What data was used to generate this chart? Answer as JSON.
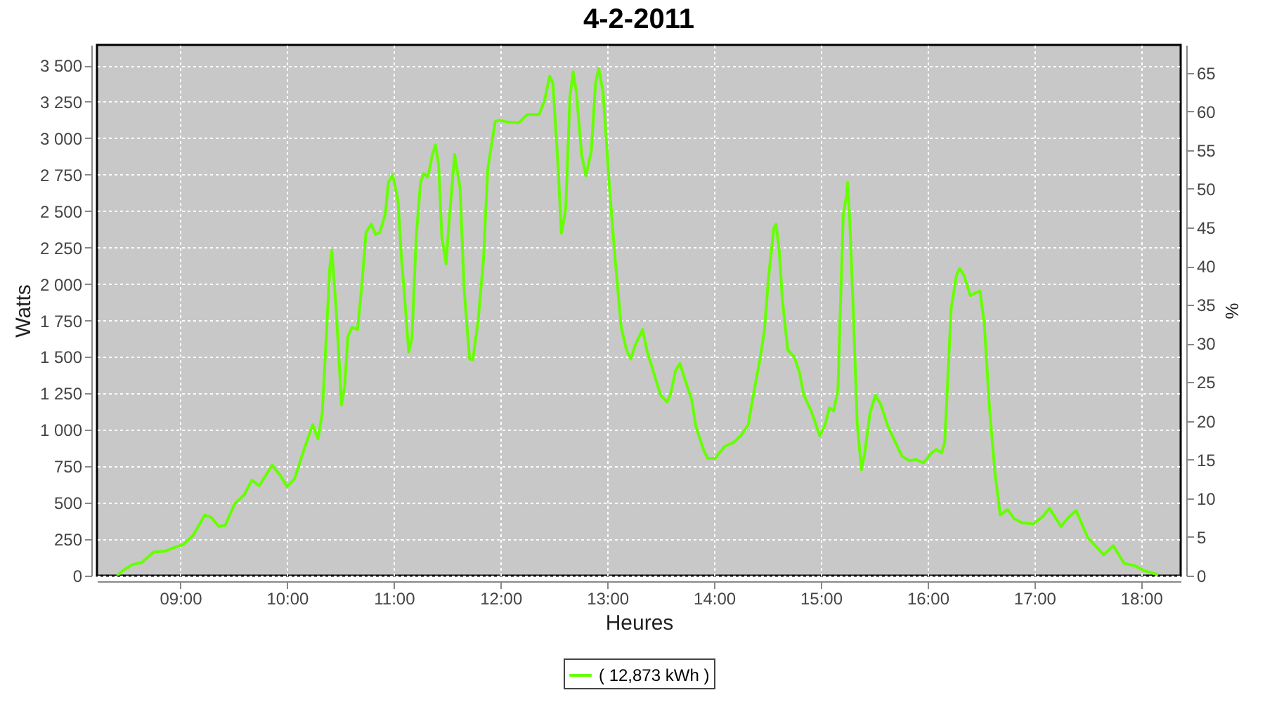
{
  "chart_data": {
    "type": "line",
    "title": "4-2-2011",
    "xlabel": "Heures",
    "ylabel": "Watts",
    "y2label": "%",
    "xlim": [
      8.22,
      18.37
    ],
    "ylim": [
      0,
      3640
    ],
    "y2lim": [
      0,
      68.6
    ],
    "xticks": [
      {
        "value": 9,
        "label": "09:00"
      },
      {
        "value": 10,
        "label": "10:00"
      },
      {
        "value": 11,
        "label": "11:00"
      },
      {
        "value": 12,
        "label": "12:00"
      },
      {
        "value": 13,
        "label": "13:00"
      },
      {
        "value": 14,
        "label": "14:00"
      },
      {
        "value": 15,
        "label": "15:00"
      },
      {
        "value": 16,
        "label": "16:00"
      },
      {
        "value": 17,
        "label": "17:00"
      },
      {
        "value": 18,
        "label": "18:00"
      }
    ],
    "yticks": [
      0,
      250,
      500,
      750,
      {
        "value": 1000,
        "label": "1 000"
      },
      {
        "value": 1250,
        "label": "1 250"
      },
      {
        "value": 1500,
        "label": "1 500"
      },
      {
        "value": 1750,
        "label": "1 750"
      },
      {
        "value": 2000,
        "label": "2 000"
      },
      {
        "value": 2250,
        "label": "2 250"
      },
      {
        "value": 2500,
        "label": "2 500"
      },
      {
        "value": 2750,
        "label": "2 750"
      },
      {
        "value": 3000,
        "label": "3 000"
      },
      {
        "value": 3250,
        "label": "3 250"
      },
      {
        "value": 3500,
        "label": "3 500"
      }
    ],
    "y2ticks": [
      0,
      5,
      10,
      15,
      20,
      25,
      30,
      35,
      40,
      45,
      50,
      55,
      60,
      65
    ],
    "grid": true,
    "legend": "bottom",
    "marker": "none",
    "line_style": "solid",
    "series": [
      {
        "name": "( 12,873 kWh )",
        "color": "#66ff00",
        "x": [
          8.41,
          8.46,
          8.55,
          8.64,
          8.75,
          8.86,
          8.94,
          9.03,
          9.12,
          9.23,
          9.29,
          9.36,
          9.42,
          9.51,
          9.6,
          9.67,
          9.74,
          9.86,
          9.93,
          10.0,
          10.07,
          10.16,
          10.24,
          10.29,
          10.33,
          10.37,
          10.4,
          10.42,
          10.46,
          10.48,
          10.51,
          10.54,
          10.57,
          10.61,
          10.66,
          10.7,
          10.74,
          10.79,
          10.83,
          10.87,
          10.92,
          10.95,
          10.99,
          11.04,
          11.07,
          11.1,
          11.14,
          11.17,
          11.21,
          11.25,
          11.28,
          11.32,
          11.36,
          11.39,
          11.42,
          11.45,
          11.49,
          11.52,
          11.57,
          11.62,
          11.66,
          11.71,
          11.74,
          11.79,
          11.84,
          11.88,
          11.95,
          11.99,
          12.06,
          12.17,
          12.25,
          12.36,
          12.41,
          12.46,
          12.49,
          12.54,
          12.57,
          12.61,
          12.65,
          12.68,
          12.71,
          12.76,
          12.8,
          12.85,
          12.89,
          12.92,
          12.96,
          13.02,
          13.07,
          13.13,
          13.18,
          13.22,
          13.26,
          13.33,
          13.37,
          13.44,
          13.5,
          13.56,
          13.59,
          13.64,
          13.68,
          13.72,
          13.79,
          13.83,
          13.9,
          13.94,
          14.01,
          14.1,
          14.18,
          14.25,
          14.32,
          14.36,
          14.43,
          14.47,
          14.51,
          14.56,
          14.58,
          14.61,
          14.64,
          14.69,
          14.75,
          14.8,
          14.84,
          14.91,
          14.99,
          15.04,
          15.08,
          15.12,
          15.16,
          15.18,
          15.21,
          15.24,
          15.25,
          15.27,
          15.3,
          15.34,
          15.38,
          15.41,
          15.46,
          15.51,
          15.56,
          15.63,
          15.7,
          15.76,
          15.83,
          15.89,
          15.96,
          16.03,
          16.08,
          16.13,
          16.16,
          16.19,
          16.22,
          16.27,
          16.3,
          16.34,
          16.4,
          16.44,
          16.49,
          16.53,
          16.58,
          16.63,
          16.68,
          16.75,
          16.81,
          16.88,
          16.99,
          17.08,
          17.14,
          17.25,
          17.32,
          17.39,
          17.5,
          17.56,
          17.65,
          17.74,
          17.84,
          17.94,
          18.03,
          18.16
        ],
        "values": [
          0,
          34,
          75,
          90,
          161,
          168,
          192,
          214,
          276,
          416,
          400,
          338,
          344,
          493,
          555,
          655,
          617,
          757,
          695,
          611,
          664,
          866,
          1036,
          937,
          1114,
          1672,
          2107,
          2231,
          1827,
          1579,
          1170,
          1300,
          1641,
          1703,
          1688,
          1983,
          2355,
          2411,
          2339,
          2355,
          2479,
          2696,
          2749,
          2572,
          2200,
          1921,
          1533,
          1626,
          2324,
          2696,
          2758,
          2733,
          2882,
          2954,
          2820,
          2324,
          2138,
          2448,
          2889,
          2665,
          1952,
          1486,
          1480,
          1750,
          2169,
          2789,
          3115,
          3124,
          3112,
          3106,
          3162,
          3162,
          3255,
          3425,
          3379,
          2789,
          2349,
          2510,
          3286,
          3456,
          3317,
          2882,
          2743,
          2913,
          3379,
          3478,
          3317,
          2665,
          2200,
          1703,
          1548,
          1486,
          1579,
          1688,
          1548,
          1378,
          1238,
          1191,
          1238,
          1409,
          1455,
          1362,
          1207,
          1021,
          866,
          804,
          804,
          887,
          912,
          959,
          1036,
          1207,
          1486,
          1672,
          2045,
          2386,
          2411,
          2231,
          1890,
          1548,
          1502,
          1393,
          1238,
          1129,
          959,
          1036,
          1151,
          1129,
          1269,
          1765,
          2479,
          2603,
          2696,
          2448,
          1890,
          1052,
          726,
          835,
          1114,
          1238,
          1176,
          1021,
          912,
          819,
          788,
          797,
          773,
          835,
          866,
          841,
          912,
          1362,
          1827,
          2060,
          2107,
          2060,
          1921,
          1936,
          1952,
          1734,
          1145,
          711,
          416,
          453,
          391,
          363,
          354,
          406,
          462,
          338,
          400,
          447,
          261,
          214,
          143,
          205,
          84,
          68,
          34,
          6
        ]
      }
    ]
  }
}
